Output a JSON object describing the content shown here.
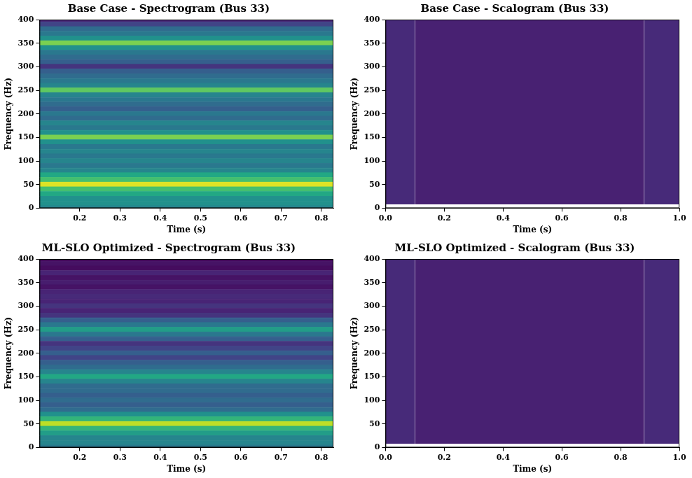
{
  "chart_data": [
    {
      "type": "heatmap",
      "title": "Base Case - Spectrogram (Bus 33)",
      "x_label": "Time (s)",
      "y_label": "Frequency (Hz)",
      "xlim": [
        0.1,
        0.83
      ],
      "xticks": [
        0.2,
        0.3,
        0.4,
        0.5,
        0.6,
        0.7,
        0.8
      ],
      "ylim": [
        0,
        400
      ],
      "yticks": [
        0,
        50,
        100,
        150,
        200,
        250,
        300,
        350,
        400
      ],
      "grid": false,
      "color_range": [
        0,
        1
      ],
      "x_edges": [
        0.1,
        0.83
      ],
      "y_edges": [
        0,
        5,
        15,
        25,
        35,
        45,
        55,
        65,
        75,
        85,
        95,
        105,
        115,
        125,
        135,
        145,
        155,
        165,
        175,
        185,
        195,
        205,
        215,
        225,
        235,
        245,
        255,
        265,
        275,
        285,
        295,
        305,
        315,
        325,
        335,
        345,
        355,
        365,
        375,
        385,
        395,
        400
      ],
      "cells": [
        [
          0.45
        ],
        [
          0.5
        ],
        [
          0.5
        ],
        [
          0.6
        ],
        [
          0.7
        ],
        [
          0.95
        ],
        [
          0.7
        ],
        [
          0.6
        ],
        [
          0.45
        ],
        [
          0.4
        ],
        [
          0.45
        ],
        [
          0.4
        ],
        [
          0.45
        ],
        [
          0.4
        ],
        [
          0.5
        ],
        [
          0.8
        ],
        [
          0.5
        ],
        [
          0.4
        ],
        [
          0.45
        ],
        [
          0.35
        ],
        [
          0.4
        ],
        [
          0.3
        ],
        [
          0.35
        ],
        [
          0.4
        ],
        [
          0.45
        ],
        [
          0.75
        ],
        [
          0.45
        ],
        [
          0.4
        ],
        [
          0.35
        ],
        [
          0.3
        ],
        [
          0.15
        ],
        [
          0.3
        ],
        [
          0.35
        ],
        [
          0.4
        ],
        [
          0.5
        ],
        [
          0.8
        ],
        [
          0.5
        ],
        [
          0.4
        ],
        [
          0.35
        ],
        [
          0.2
        ],
        [
          0.1
        ]
      ]
    },
    {
      "type": "heatmap",
      "title": "Base Case - Scalogram (Bus 33)",
      "x_label": "Time (s)",
      "y_label": "Frequency (Hz)",
      "xlim": [
        0,
        1
      ],
      "xticks": [
        {
          "value": 0,
          "label": "0.0"
        },
        0.2,
        0.4,
        0.6,
        0.8,
        {
          "value": 1,
          "label": "1.0"
        }
      ],
      "ylim": [
        0,
        400
      ],
      "yticks": [
        0,
        50,
        100,
        150,
        200,
        250,
        300,
        350,
        400
      ],
      "grid": false,
      "color_range": [
        0,
        1
      ],
      "x_edges": [
        0,
        0.1,
        0.88,
        1
      ],
      "y_edges": [
        8,
        400
      ],
      "cells": [
        [
          0.12,
          0.09,
          0.12
        ]
      ]
    },
    {
      "type": "heatmap",
      "title": "ML-SLO Optimized - Spectrogram (Bus 33)",
      "x_label": "Time (s)",
      "y_label": "Frequency (Hz)",
      "xlim": [
        0.1,
        0.83
      ],
      "xticks": [
        0.2,
        0.3,
        0.4,
        0.5,
        0.6,
        0.7,
        0.8
      ],
      "ylim": [
        0,
        400
      ],
      "yticks": [
        0,
        50,
        100,
        150,
        200,
        250,
        300,
        350,
        400
      ],
      "grid": false,
      "color_range": [
        0,
        1
      ],
      "x_edges": [
        0.1,
        0.83
      ],
      "y_edges": [
        0,
        5,
        15,
        25,
        35,
        45,
        55,
        65,
        75,
        85,
        95,
        105,
        115,
        125,
        135,
        145,
        155,
        165,
        175,
        185,
        195,
        205,
        215,
        225,
        235,
        245,
        255,
        265,
        275,
        285,
        295,
        305,
        315,
        325,
        335,
        345,
        355,
        365,
        375,
        385,
        395,
        400
      ],
      "cells": [
        [
          0.4
        ],
        [
          0.45
        ],
        [
          0.45
        ],
        [
          0.55
        ],
        [
          0.65
        ],
        [
          0.9
        ],
        [
          0.65
        ],
        [
          0.5
        ],
        [
          0.35
        ],
        [
          0.3
        ],
        [
          0.35
        ],
        [
          0.3
        ],
        [
          0.35
        ],
        [
          0.35
        ],
        [
          0.45
        ],
        [
          0.6
        ],
        [
          0.45
        ],
        [
          0.35
        ],
        [
          0.3
        ],
        [
          0.2
        ],
        [
          0.3
        ],
        [
          0.2
        ],
        [
          0.15
        ],
        [
          0.3
        ],
        [
          0.4
        ],
        [
          0.55
        ],
        [
          0.4
        ],
        [
          0.3
        ],
        [
          0.15
        ],
        [
          0.1
        ],
        [
          0.15
        ],
        [
          0.1
        ],
        [
          0.12
        ],
        [
          0.1
        ],
        [
          0.05
        ],
        [
          0.08
        ],
        [
          0.05
        ],
        [
          0.1
        ],
        [
          0.03
        ],
        [
          0.05
        ],
        [
          0.02
        ]
      ]
    },
    {
      "type": "heatmap",
      "title": "ML-SLO Optimized - Scalogram (Bus 33)",
      "x_label": "Time (s)",
      "y_label": "Frequency (Hz)",
      "xlim": [
        0,
        1
      ],
      "xticks": [
        {
          "value": 0,
          "label": "0.0"
        },
        0.2,
        0.4,
        0.6,
        0.8,
        {
          "value": 1,
          "label": "1.0"
        }
      ],
      "ylim": [
        0,
        400
      ],
      "yticks": [
        0,
        50,
        100,
        150,
        200,
        250,
        300,
        350,
        400
      ],
      "grid": false,
      "color_range": [
        0,
        1
      ],
      "x_edges": [
        0,
        0.1,
        0.88,
        1
      ],
      "y_edges": [
        8,
        400
      ],
      "cells": [
        [
          0.12,
          0.09,
          0.12
        ]
      ]
    }
  ]
}
